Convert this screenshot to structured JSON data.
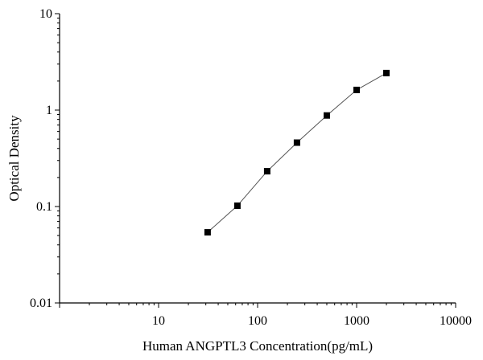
{
  "chart_data": {
    "type": "scatter",
    "title": "",
    "xlabel": "Human ANGPTL3 Concentration(pg/mL)",
    "ylabel": "Optical Density",
    "xscale": "log",
    "yscale": "log",
    "xlim": [
      1,
      10000
    ],
    "ylim": [
      0.01,
      10
    ],
    "x_tick_labels": [
      "10",
      "100",
      "1000",
      "10000"
    ],
    "y_tick_labels": [
      "0.01",
      "0.1",
      "1",
      "10"
    ],
    "grid": false,
    "legend": "none",
    "marker": "square",
    "connected": true,
    "series": [
      {
        "x": [
          31.25,
          62.5,
          125,
          250,
          500,
          1000,
          2000
        ],
        "y": [
          0.054,
          0.102,
          0.232,
          0.46,
          0.88,
          1.62,
          2.42
        ]
      }
    ],
    "colors": {
      "marker": "#000000",
      "line": "#555555",
      "axis": "#000000"
    }
  }
}
